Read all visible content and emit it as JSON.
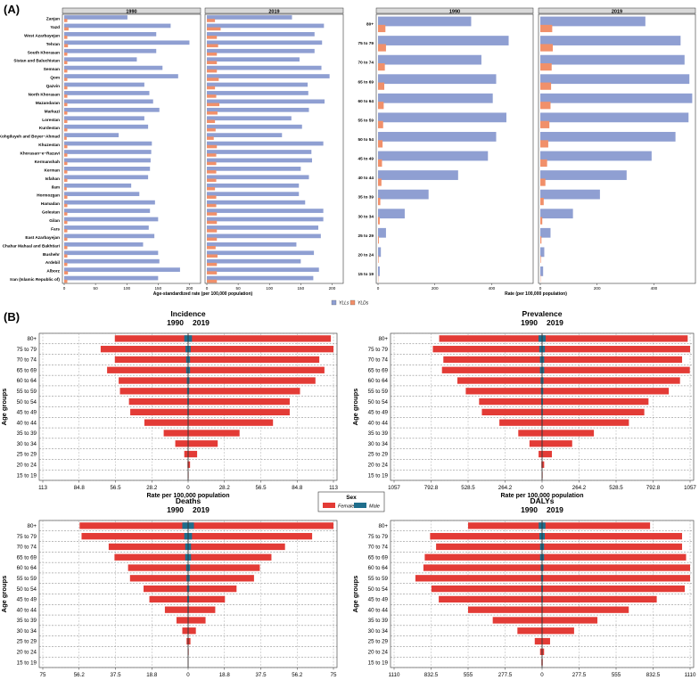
{
  "panels": {
    "a_label": "(A)",
    "b_label": "(B)"
  },
  "colors": {
    "ylls": "#8f9fd2",
    "ylds": "#f1906a",
    "female": "#e33b36",
    "male": "#1f6e8c",
    "panel_bg": "#ebebeb"
  },
  "chart_data": [
    {
      "id": "A-left",
      "type": "bar",
      "orientation": "horizontal",
      "facets": [
        "1990",
        "2019"
      ],
      "xlabel": "Age-standardized rate (per 100,000 population)",
      "xticks": [
        0,
        50,
        100,
        150,
        200
      ],
      "xlim": [
        0,
        215
      ],
      "categories": [
        "Zanjan",
        "Yazd",
        "West Azarbayejan",
        "Tehran",
        "South Khorasan",
        "Sistan and Baluchistan",
        "Semnan",
        "Qom",
        "Qazvin",
        "North Khorasan",
        "Mazandaran",
        "Markazi",
        "Lorestan",
        "Kurdestan",
        "Kohgiluyeh and Boyer−Ahmad",
        "Khuzestan",
        "Khorasan−e−Razavi",
        "Kermanshah",
        "Kerman",
        "Isfahan",
        "Ilam",
        "Hormozgan",
        "Hamadan",
        "Golestan",
        "Gilan",
        "Fars",
        "East Azarbayejan",
        "Chahar Mahaal and Bakhtiari",
        "Bushehr",
        "Ardebil",
        "Alborz",
        "Iran (Islamic Republic of)"
      ],
      "series": [
        {
          "name": "YLLs",
          "facet": "1990",
          "values": [
            101,
            170,
            147,
            200,
            147,
            116,
            157,
            182,
            128,
            136,
            142,
            152,
            128,
            134,
            87,
            140,
            139,
            138,
            137,
            134,
            107,
            120,
            145,
            137,
            150,
            135,
            144,
            126,
            150,
            152,
            185,
            150
          ]
        },
        {
          "name": "YLDs",
          "facet": "1990",
          "values": [
            5,
            7,
            5,
            6,
            5,
            5,
            5,
            5,
            5,
            5,
            5,
            5,
            5,
            5,
            4,
            5,
            5,
            5,
            5,
            5,
            4,
            5,
            5,
            5,
            5,
            5,
            5,
            5,
            5,
            5,
            6,
            5
          ]
        },
        {
          "name": "YLLs",
          "facet": "2019",
          "values": [
            136,
            187,
            172,
            184,
            172,
            148,
            183,
            196,
            161,
            162,
            188,
            163,
            135,
            152,
            120,
            186,
            167,
            168,
            150,
            163,
            147,
            147,
            157,
            186,
            186,
            178,
            182,
            143,
            171,
            150,
            179,
            170
          ]
        },
        {
          "name": "YLDs",
          "facet": "2019",
          "values": [
            13,
            22,
            16,
            18,
            16,
            16,
            16,
            19,
            13,
            15,
            20,
            17,
            13,
            14,
            11,
            16,
            15,
            15,
            15,
            15,
            13,
            15,
            15,
            16,
            16,
            16,
            16,
            14,
            17,
            16,
            16,
            16
          ]
        }
      ],
      "legend": [
        "YLLs",
        "YLDs"
      ],
      "legend_position": "bottom"
    },
    {
      "id": "A-right",
      "type": "bar",
      "orientation": "horizontal",
      "facets": [
        "1990",
        "2019"
      ],
      "xlabel": "Rate (per 100,000 population)",
      "xticks": [
        0,
        200,
        400
      ],
      "xlim": [
        0,
        540
      ],
      "categories": [
        "80+",
        "75 to 79",
        "70 to 74",
        "65 to 69",
        "60 to 64",
        "55 to 59",
        "50 to 54",
        "45 to 49",
        "40 to 44",
        "35 to 39",
        "30 to 34",
        "25 to 29",
        "20 to 24",
        "15 to 19"
      ],
      "series": [
        {
          "name": "YLLs",
          "facet": "1990",
          "values": [
            328,
            460,
            364,
            416,
            404,
            452,
            416,
            387,
            282,
            178,
            94,
            28,
            10,
            6
          ]
        },
        {
          "name": "YLDs",
          "facet": "1990",
          "values": [
            26,
            28,
            24,
            22,
            20,
            18,
            16,
            14,
            12,
            8,
            6,
            3,
            2,
            1
          ]
        },
        {
          "name": "YLLs",
          "facet": "2019",
          "values": [
            370,
            494,
            508,
            525,
            535,
            522,
            476,
            392,
            304,
            210,
            115,
            36,
            14,
            10
          ]
        },
        {
          "name": "YLDs",
          "facet": "2019",
          "values": [
            42,
            44,
            40,
            38,
            36,
            32,
            28,
            24,
            18,
            12,
            7,
            4,
            2,
            1
          ]
        }
      ]
    },
    {
      "id": "B-incidence",
      "type": "bar",
      "orientation": "horizontal-diverging",
      "title": "Incidence",
      "left_label": "1990",
      "right_label": "2019",
      "xlabel": "Rate per 100,000 population",
      "ylabel": "Age groups",
      "max": 113,
      "ticks": [
        "113",
        "84.8",
        "56.5",
        "28.2",
        "0",
        "28.2",
        "56.5",
        "84.8",
        "113"
      ],
      "categories": [
        "80+",
        "75 to 79",
        "70 to 74",
        "65 to 69",
        "60 to 64",
        "55 to 59",
        "50 to 54",
        "45 to 49",
        "40 to 44",
        "35 to 39",
        "30 to 34",
        "25 to 29",
        "20 to 24",
        "15 to 19"
      ],
      "female_1990": [
        57,
        68,
        57,
        63,
        54,
        53,
        46,
        45,
        34,
        19,
        10,
        3,
        0.5,
        0.2
      ],
      "female_2019": [
        111,
        113,
        102,
        106,
        99,
        87,
        79,
        79,
        66,
        40,
        23,
        7,
        1.5,
        0.4
      ],
      "male_1990": [
        3,
        2,
        1.5,
        1.5,
        1,
        0.8,
        0.6,
        0.5,
        0.3,
        0.2,
        0.1,
        0,
        0,
        0
      ],
      "male_2019": [
        3,
        2,
        1.5,
        1.5,
        1,
        0.8,
        0.6,
        0.5,
        0.3,
        0.2,
        0.1,
        0,
        0,
        0
      ]
    },
    {
      "id": "B-prevalence",
      "type": "bar",
      "orientation": "horizontal-diverging",
      "title": "Prevalence",
      "left_label": "1990",
      "right_label": "2019",
      "xlabel": "Rate per 100,000 population",
      "ylabel": "Age groups",
      "max": 1057,
      "ticks": [
        "1057",
        "792.8",
        "528.5",
        "264.2",
        "0",
        "264.2",
        "528.5",
        "792.8",
        "1057"
      ],
      "categories": [
        "80+",
        "75 to 79",
        "70 to 74",
        "65 to 69",
        "60 to 64",
        "55 to 59",
        "50 to 54",
        "45 to 49",
        "40 to 44",
        "35 to 39",
        "30 to 34",
        "25 to 29",
        "20 to 24",
        "15 to 19"
      ],
      "female_1990": [
        735,
        780,
        705,
        715,
        605,
        545,
        450,
        430,
        305,
        170,
        90,
        25,
        5,
        2
      ],
      "female_2019": [
        1040,
        1057,
        1000,
        1055,
        985,
        905,
        760,
        730,
        620,
        370,
        215,
        70,
        15,
        4
      ],
      "male_1990": [
        25,
        20,
        15,
        15,
        10,
        8,
        6,
        5,
        3,
        2,
        1,
        0,
        0,
        0
      ],
      "male_2019": [
        25,
        20,
        15,
        15,
        10,
        8,
        6,
        5,
        3,
        2,
        1,
        0,
        0,
        0
      ]
    },
    {
      "id": "B-deaths",
      "type": "bar",
      "orientation": "horizontal-diverging",
      "title": "Deaths",
      "left_label": "1990",
      "right_label": "2019",
      "xlabel": "Rate per 100,000 population",
      "ylabel": "Age groups",
      "max": 75,
      "ticks": [
        "75",
        "56.2",
        "37.5",
        "18.8",
        "0",
        "18.8",
        "37.5",
        "56.2",
        "75"
      ],
      "categories": [
        "80+",
        "75 to 79",
        "70 to 74",
        "65 to 69",
        "60 to 64",
        "55 to 59",
        "50 to 54",
        "45 to 49",
        "40 to 44",
        "35 to 39",
        "30 to 34",
        "25 to 29",
        "20 to 24",
        "15 to 19"
      ],
      "female_1990": [
        56,
        55,
        41,
        38,
        31,
        30,
        23,
        20,
        12,
        6,
        3,
        0.8,
        0.2,
        0.1
      ],
      "female_2019": [
        75,
        64,
        50,
        43,
        37,
        34,
        25,
        19,
        14,
        9,
        4,
        1.2,
        0.3,
        0.1
      ],
      "male_1990": [
        3,
        2,
        1.5,
        1.5,
        1,
        0.8,
        0.6,
        0.5,
        0.3,
        0.2,
        0.1,
        0,
        0,
        0
      ],
      "male_2019": [
        3,
        2,
        1.5,
        1.5,
        1,
        0.8,
        0.6,
        0.5,
        0.3,
        0.2,
        0.1,
        0,
        0,
        0
      ]
    },
    {
      "id": "B-dalys",
      "type": "bar",
      "orientation": "horizontal-diverging",
      "title": "DALYs",
      "left_label": "1990",
      "right_label": "2019",
      "xlabel": "Rate per 100,000 population",
      "ylabel": "Age groups",
      "max": 1110,
      "ticks": [
        "1110",
        "832.5",
        "555",
        "277.5",
        "0",
        "277.5",
        "555",
        "832.5",
        "1110"
      ],
      "categories": [
        "80+",
        "75 to 79",
        "70 to 74",
        "65 to 69",
        "60 to 64",
        "55 to 59",
        "50 to 54",
        "45 to 49",
        "40 to 44",
        "35 to 39",
        "30 to 34",
        "25 to 29",
        "20 to 24",
        "15 to 19"
      ],
      "female_1990": [
        555,
        840,
        795,
        880,
        890,
        950,
        830,
        775,
        555,
        370,
        185,
        55,
        15,
        5
      ],
      "female_2019": [
        810,
        1050,
        1050,
        1080,
        1110,
        1110,
        1070,
        860,
        650,
        415,
        240,
        60,
        15,
        5
      ],
      "male_1990": [
        25,
        20,
        15,
        15,
        10,
        8,
        6,
        5,
        3,
        2,
        1,
        0,
        0,
        0
      ],
      "male_2019": [
        25,
        20,
        15,
        15,
        10,
        8,
        6,
        5,
        3,
        2,
        1,
        0,
        0,
        0
      ]
    }
  ],
  "legends": {
    "a_left": {
      "items": [
        "YLLs",
        "YLDs"
      ]
    },
    "b_sex": {
      "title": "Sex",
      "items": [
        "Female",
        "Male"
      ]
    }
  }
}
